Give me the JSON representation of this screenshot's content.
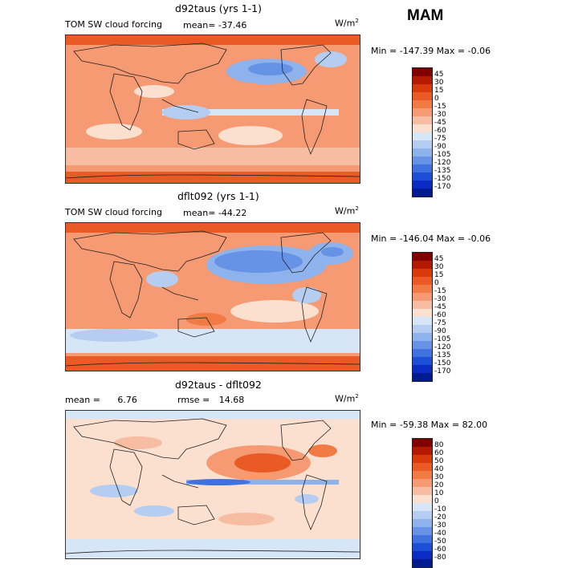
{
  "season": "MAM",
  "panels": [
    {
      "title": "d92taus (yrs 1-1)",
      "field_label": "TOM SW cloud forcing",
      "mean_label": "mean=",
      "mean": "-37.46",
      "units": "W/m",
      "units_exp": "2",
      "min_max": "Min = -147.39 Max =  -0.06",
      "colorbar": {
        "colors": [
          "#800000",
          "#b31a00",
          "#d93a0a",
          "#ea5a24",
          "#f27a45",
          "#f59a72",
          "#f7bda3",
          "#fbe0d0",
          "#d7e6f6",
          "#b4cdf0",
          "#8db2ec",
          "#6793e6",
          "#3f72df",
          "#1d4ed6",
          "#0a2cc4",
          "#001b8f"
        ],
        "ticks": [
          "45",
          "30",
          "15",
          "0",
          "-15",
          "-30",
          "-45",
          "-60",
          "-75",
          "-90",
          "-105",
          "-120",
          "-135",
          "-150",
          "-170"
        ]
      }
    },
    {
      "title": "dflt092 (yrs 1-1)",
      "field_label": "TOM SW cloud forcing",
      "mean_label": "mean=",
      "mean": "-44.22",
      "units": "W/m",
      "units_exp": "2",
      "min_max": "Min = -146.04 Max =  -0.06",
      "colorbar": {
        "colors": [
          "#800000",
          "#b31a00",
          "#d93a0a",
          "#ea5a24",
          "#f27a45",
          "#f59a72",
          "#f7bda3",
          "#fbe0d0",
          "#d7e6f6",
          "#b4cdf0",
          "#8db2ec",
          "#6793e6",
          "#3f72df",
          "#1d4ed6",
          "#0a2cc4",
          "#001b8f"
        ],
        "ticks": [
          "45",
          "30",
          "15",
          "0",
          "-15",
          "-30",
          "-45",
          "-60",
          "-75",
          "-90",
          "-105",
          "-120",
          "-135",
          "-150",
          "-170"
        ]
      }
    },
    {
      "title": "d92taus - dflt092",
      "field_label": "",
      "mean_label": "mean =",
      "mean": "6.76",
      "rmse_label": "rmse =",
      "rmse": "14.68",
      "units": "W/m",
      "units_exp": "2",
      "min_max": "Min = -59.38 Max =  82.00",
      "colorbar": {
        "colors": [
          "#800000",
          "#b31a00",
          "#d93a0a",
          "#ea5a24",
          "#f27a45",
          "#f59a72",
          "#f7bda3",
          "#fbe0d0",
          "#d7e6f6",
          "#b4cdf0",
          "#8db2ec",
          "#6793e6",
          "#3f72df",
          "#1d4ed6",
          "#0a2cc4",
          "#001b8f"
        ],
        "ticks": [
          "80",
          "60",
          "50",
          "40",
          "30",
          "20",
          "10",
          "0",
          "-10",
          "-20",
          "-30",
          "-40",
          "-50",
          "-60",
          "-80"
        ]
      }
    }
  ]
}
